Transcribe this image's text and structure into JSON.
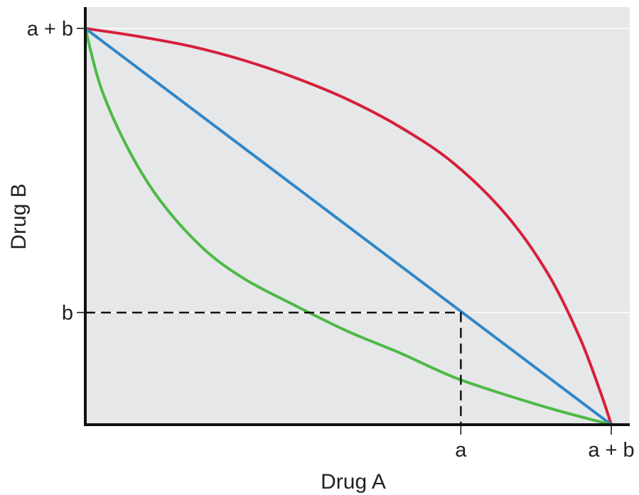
{
  "chart_data": {
    "type": "line",
    "title": "",
    "xlabel": "Drug A",
    "ylabel": "Drug B",
    "xlim": [
      0,
      1.0
    ],
    "ylim": [
      0,
      1.0
    ],
    "x_ticks": [
      {
        "label": "a",
        "value": 0.714
      },
      {
        "label": "a + b",
        "value": 1.0
      }
    ],
    "y_ticks": [
      {
        "label": "b",
        "value": 0.283
      },
      {
        "label": "a + b",
        "value": 1.0
      }
    ],
    "grid": false,
    "series": [
      {
        "color": "#d6203a",
        "style": "solid",
        "points": [
          [
            0,
            1.0
          ],
          [
            0.1,
            0.98
          ],
          [
            0.2,
            0.955
          ],
          [
            0.3,
            0.92
          ],
          [
            0.4,
            0.875
          ],
          [
            0.5,
            0.82
          ],
          [
            0.6,
            0.75
          ],
          [
            0.7,
            0.66
          ],
          [
            0.8,
            0.53
          ],
          [
            0.88,
            0.38
          ],
          [
            0.94,
            0.22
          ],
          [
            0.98,
            0.08
          ],
          [
            1.0,
            0.0
          ]
        ]
      },
      {
        "color": "#2f87c8",
        "style": "solid",
        "points": [
          [
            0,
            1.0
          ],
          [
            1.0,
            0.0
          ]
        ]
      },
      {
        "color": "#4cba45",
        "style": "solid",
        "points": [
          [
            0,
            1.0
          ],
          [
            0.03,
            0.85
          ],
          [
            0.08,
            0.7
          ],
          [
            0.14,
            0.57
          ],
          [
            0.22,
            0.45
          ],
          [
            0.3,
            0.37
          ],
          [
            0.4,
            0.3
          ],
          [
            0.5,
            0.235
          ],
          [
            0.6,
            0.18
          ],
          [
            0.7,
            0.12
          ],
          [
            0.8,
            0.075
          ],
          [
            0.9,
            0.035
          ],
          [
            1.0,
            0.0
          ]
        ]
      }
    ],
    "reference_lines": {
      "color": "#111111",
      "style": "dashed",
      "points": [
        [
          0,
          0.283
        ],
        [
          0.714,
          0.283
        ],
        [
          0.714,
          0.0
        ]
      ]
    }
  },
  "colors": {
    "plot_background": "#e6e7e9",
    "axis": "#111111"
  }
}
